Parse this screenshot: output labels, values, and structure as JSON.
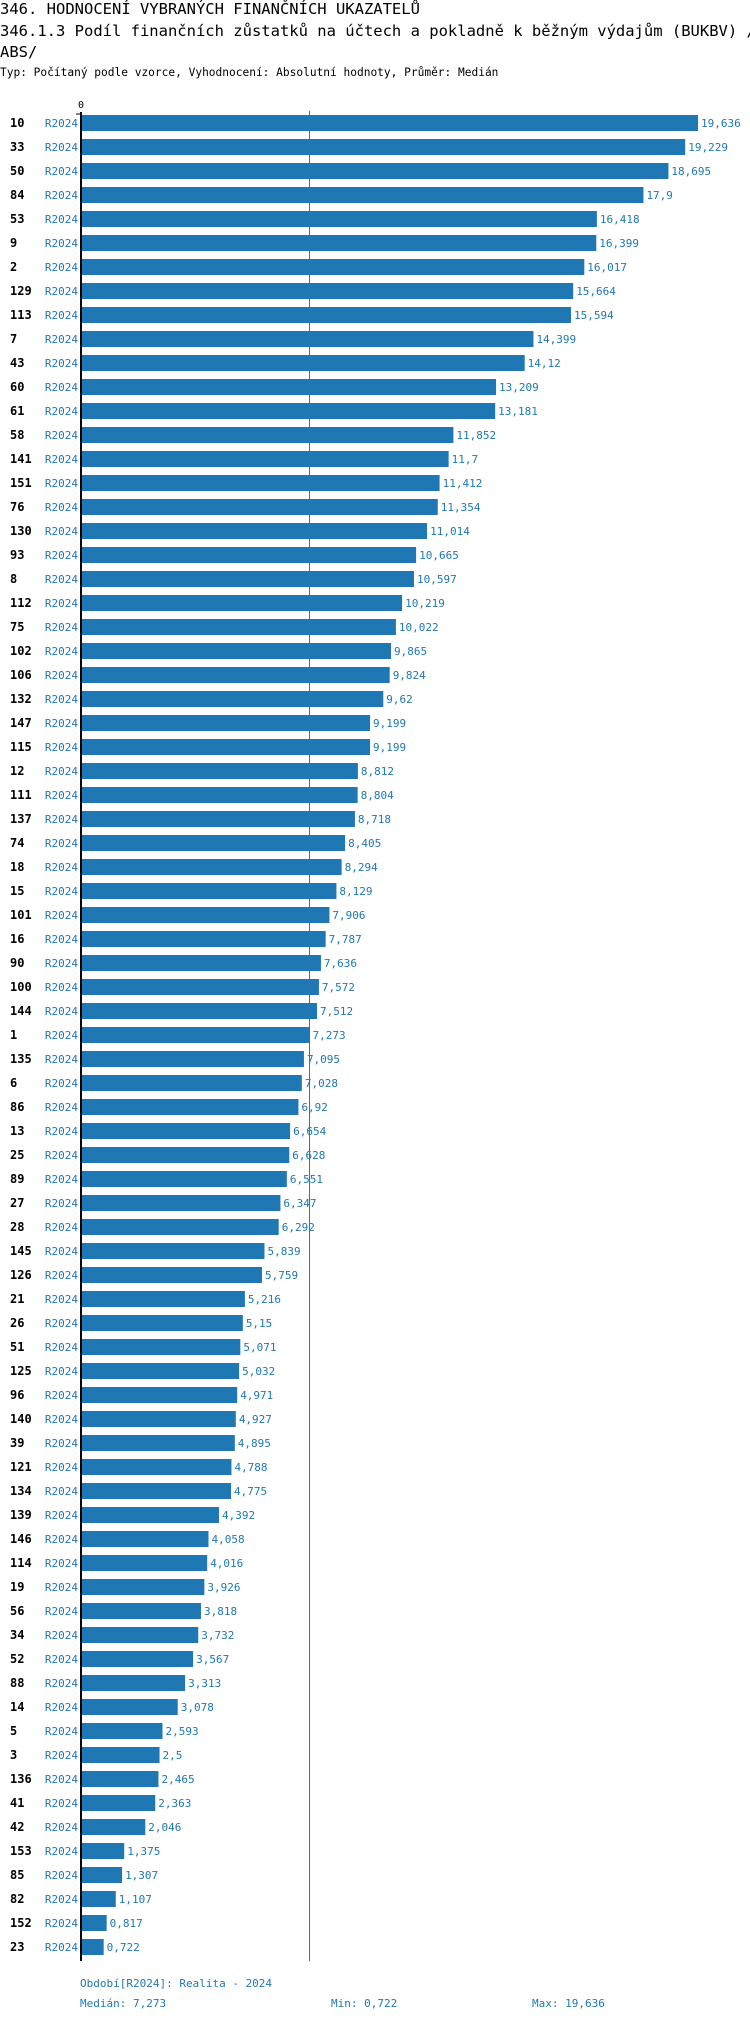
{
  "header": {
    "title": "346. HODNOCENÍ VYBRANÝCH FINANČNÍCH UKAZATELŮ",
    "subtitle": "346.1.3 Podíl finančních zůstatků na účtech a pokladně k běžným výdajům (BUKBV) /",
    "subtitle_cont": "ABS/",
    "info": "Typ: Počítaný podle vzorce, Vyhodnocení: Absolutní hodnoty, Průměr: Medián"
  },
  "chart_data": {
    "type": "bar",
    "orientation": "horizontal",
    "axis_zero_label": "0",
    "series_label": "R2024",
    "bar_color": "#1f77b4",
    "median": 7.273,
    "xlim": [
      0,
      19.636
    ],
    "categories": [
      "10",
      "33",
      "50",
      "84",
      "53",
      "9",
      "2",
      "129",
      "113",
      "7",
      "43",
      "60",
      "61",
      "58",
      "141",
      "151",
      "76",
      "130",
      "93",
      "8",
      "112",
      "75",
      "102",
      "106",
      "132",
      "147",
      "115",
      "12",
      "111",
      "137",
      "74",
      "18",
      "15",
      "101",
      "16",
      "90",
      "100",
      "144",
      "1",
      "135",
      "6",
      "86",
      "13",
      "25",
      "89",
      "27",
      "28",
      "145",
      "126",
      "21",
      "26",
      "51",
      "125",
      "96",
      "140",
      "39",
      "121",
      "134",
      "139",
      "146",
      "114",
      "19",
      "56",
      "34",
      "52",
      "88",
      "14",
      "5",
      "3",
      "136",
      "41",
      "42",
      "153",
      "85",
      "82",
      "152",
      "23"
    ],
    "values": [
      19.636,
      19.229,
      18.695,
      17.9,
      16.418,
      16.399,
      16.017,
      15.664,
      15.594,
      14.399,
      14.12,
      13.209,
      13.181,
      11.852,
      11.7,
      11.412,
      11.354,
      11.014,
      10.665,
      10.597,
      10.219,
      10.022,
      9.865,
      9.824,
      9.62,
      9.199,
      9.199,
      8.812,
      8.804,
      8.718,
      8.405,
      8.294,
      8.129,
      7.906,
      7.787,
      7.636,
      7.572,
      7.512,
      7.273,
      7.095,
      7.028,
      6.92,
      6.654,
      6.628,
      6.551,
      6.347,
      6.292,
      5.839,
      5.759,
      5.216,
      5.15,
      5.071,
      5.032,
      4.971,
      4.927,
      4.895,
      4.788,
      4.775,
      4.392,
      4.058,
      4.016,
      3.926,
      3.818,
      3.732,
      3.567,
      3.313,
      3.078,
      2.593,
      2.5,
      2.465,
      2.363,
      2.046,
      1.375,
      1.307,
      1.107,
      0.817,
      0.722
    ],
    "value_labels": [
      "19,636",
      "19,229",
      "18,695",
      "17,9",
      "16,418",
      "16,399",
      "16,017",
      "15,664",
      "15,594",
      "14,399",
      "14,12",
      "13,209",
      "13,181",
      "11,852",
      "11,7",
      "11,412",
      "11,354",
      "11,014",
      "10,665",
      "10,597",
      "10,219",
      "10,022",
      "9,865",
      "9,824",
      "9,62",
      "9,199",
      "9,199",
      "8,812",
      "8,804",
      "8,718",
      "8,405",
      "8,294",
      "8,129",
      "7,906",
      "7,787",
      "7,636",
      "7,572",
      "7,512",
      "7,273",
      "7,095",
      "7,028",
      "6,92",
      "6,654",
      "6,628",
      "6,551",
      "6,347",
      "6,292",
      "5,839",
      "5,759",
      "5,216",
      "5,15",
      "5,071",
      "5,032",
      "4,971",
      "4,927",
      "4,895",
      "4,788",
      "4,775",
      "4,392",
      "4,058",
      "4,016",
      "3,926",
      "3,818",
      "3,732",
      "3,567",
      "3,313",
      "3,078",
      "2,593",
      "2,5",
      "2,465",
      "2,363",
      "2,046",
      "1,375",
      "1,307",
      "1,107",
      "0,817",
      "0,722"
    ]
  },
  "footer": {
    "period": "Období[R2024]: Realita - 2024",
    "median": "Medián: 7,273",
    "min": "Min: 0,722",
    "max": "Max: 19,636"
  }
}
